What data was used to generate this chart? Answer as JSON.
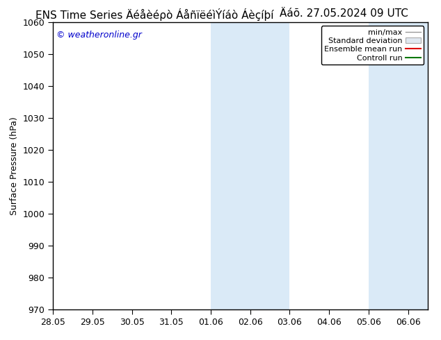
{
  "title_left": "ENS Time Series Äéåèéρò ÁåανιëêÍαò Áåçîεύ",
  "title_right": "Äàυ. 27.05.2024 09 UTC",
  "ylabel": "Surface Pressure (hPa)",
  "ylim": [
    970,
    1060
  ],
  "yticks": [
    970,
    980,
    990,
    1000,
    1010,
    1020,
    1030,
    1040,
    1050,
    1060
  ],
  "x_start": "2024-05-28",
  "x_end": "2024-06-06",
  "xtick_labels": [
    "28.05",
    "29.05",
    "30.05",
    "31.05",
    "01.06",
    "02.06",
    "03.06",
    "04.06",
    "05.06",
    "06.06"
  ],
  "shade_bands": [
    {
      "start": "2024-06-01",
      "end": "2024-06-03"
    },
    {
      "start": "2024-06-05",
      "end": "2024-06-07"
    }
  ],
  "shade_color": "#daeaf7",
  "watermark": "© weatheronline.gr",
  "watermark_color": "#0000cc",
  "legend_labels": [
    "min/max",
    "Standard deviation",
    "Ensemble mean run",
    "Controll run"
  ],
  "legend_line_colors": [
    "#999999",
    "#cccccc",
    "#dd0000",
    "#007700"
  ],
  "bg_color": "#ffffff",
  "title_fontsize": 11,
  "tick_fontsize": 9,
  "ylabel_fontsize": 9,
  "legend_fontsize": 8
}
